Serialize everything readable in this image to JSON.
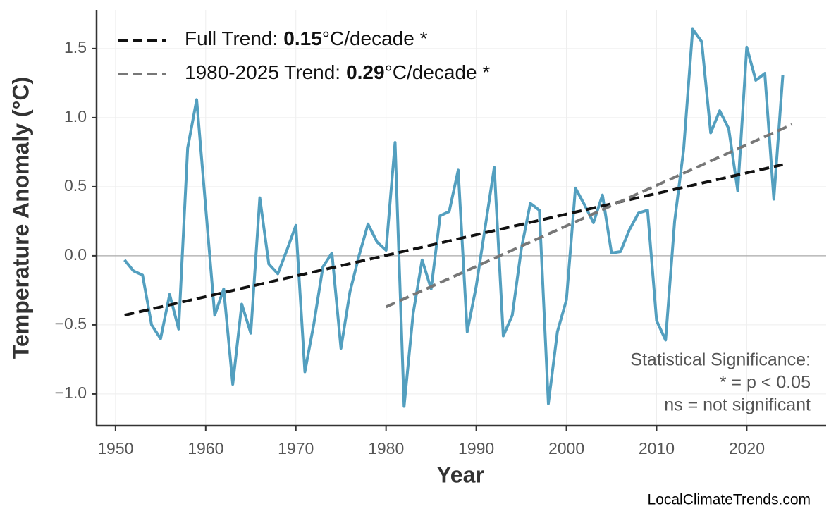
{
  "chart_data": {
    "type": "line",
    "xlabel": "Year",
    "ylabel": "Temperature Anomaly (°C)",
    "x": [
      1951,
      1952,
      1953,
      1954,
      1955,
      1956,
      1957,
      1958,
      1959,
      1960,
      1961,
      1962,
      1963,
      1964,
      1965,
      1966,
      1967,
      1968,
      1969,
      1970,
      1971,
      1972,
      1973,
      1974,
      1975,
      1976,
      1977,
      1978,
      1979,
      1980,
      1981,
      1982,
      1983,
      1984,
      1985,
      1986,
      1987,
      1988,
      1989,
      1990,
      1991,
      1992,
      1993,
      1994,
      1995,
      1996,
      1997,
      1998,
      1999,
      2000,
      2001,
      2002,
      2003,
      2004,
      2005,
      2006,
      2007,
      2008,
      2009,
      2010,
      2011,
      2012,
      2013,
      2014,
      2015,
      2016,
      2017,
      2018,
      2019,
      2020,
      2021,
      2022,
      2023,
      2024
    ],
    "series": [
      {
        "color": "#539fbf",
        "values": [
          -0.03,
          -0.11,
          -0.14,
          -0.5,
          -0.6,
          -0.28,
          -0.53,
          0.78,
          1.13,
          0.35,
          -0.43,
          -0.24,
          -0.93,
          -0.35,
          -0.56,
          0.42,
          -0.06,
          -0.13,
          0.04,
          0.22,
          -0.84,
          -0.49,
          -0.08,
          0.02,
          -0.67,
          -0.26,
          0.0,
          0.23,
          0.1,
          0.04,
          0.82,
          -1.09,
          -0.42,
          -0.03,
          -0.24,
          0.29,
          0.32,
          0.62,
          -0.55,
          -0.22,
          0.21,
          0.64,
          -0.58,
          -0.43,
          0.05,
          0.38,
          0.33,
          -1.07,
          -0.55,
          -0.32,
          0.49,
          0.37,
          0.24,
          0.44,
          0.02,
          0.03,
          0.19,
          0.31,
          0.33,
          -0.47,
          -0.61,
          0.25,
          0.77,
          1.64,
          1.55,
          0.89,
          1.05,
          0.92,
          0.47,
          1.51,
          1.27,
          1.32,
          0.41,
          1.31
        ]
      },
      {
        "name": [
          "Full Trend:",
          "0.15",
          "°C/decade *"
        ],
        "color": "#111111",
        "dashed": true,
        "x": [
          1951,
          2024
        ],
        "values": [
          -0.43,
          0.66
        ]
      },
      {
        "name": [
          "1980-2025 Trend:",
          "0.29",
          "°C/decade *"
        ],
        "color": "#777777",
        "dashed": true,
        "x": [
          1980,
          2025
        ],
        "values": [
          -0.37,
          0.95
        ]
      }
    ],
    "xlim": [
      1947.9,
      2028.8
    ],
    "ylim": [
      -1.23,
      1.78
    ],
    "xticks": [
      1950,
      1960,
      1970,
      1980,
      1990,
      2000,
      2010,
      2020
    ],
    "yticks": [
      {
        "value": -1.0,
        "label": "−1.0"
      },
      {
        "value": -0.5,
        "label": "−0.5"
      },
      {
        "value": 0,
        "label": "0.0"
      },
      0.5,
      {
        "value": 1.0,
        "label": "1.0"
      },
      1.5
    ],
    "grid": true,
    "zero_line": true,
    "legend": "upper left",
    "annotation": [
      "Statistical Significance:",
      "* = p < 0.05",
      "ns = not significant"
    ],
    "source": "LocalClimateTrends.com"
  }
}
